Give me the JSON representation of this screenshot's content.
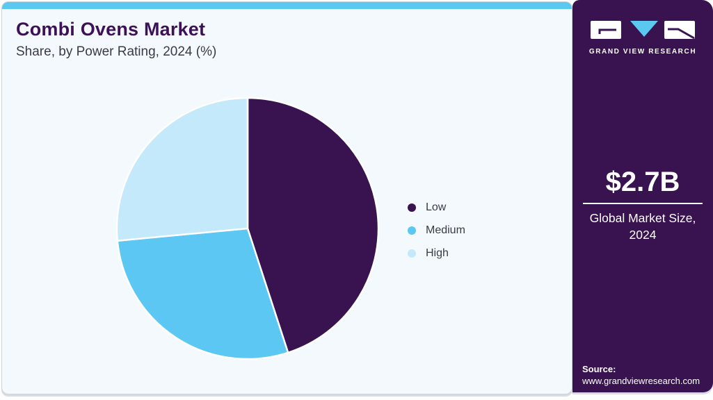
{
  "header": {
    "title": "Combi Ovens Market",
    "subtitle": "Share, by Power Rating, 2024 (%)"
  },
  "chart_data": {
    "type": "pie",
    "title": "Combi Ovens Market Share, by Power Rating, 2024 (%)",
    "categories": [
      "Low",
      "Medium",
      "High"
    ],
    "values": [
      45.0,
      28.5,
      26.5
    ],
    "unit": "%",
    "colors": [
      "#38134f",
      "#5bc7f2",
      "#c3e9fb"
    ],
    "start_angle_deg": 0,
    "direction": "clockwise",
    "legend_position": "right",
    "slice_border_color": "#ffffff"
  },
  "sidebar": {
    "logo": {
      "brand": "GRAND VIEW RESEARCH",
      "accent_color": "#5bc8f0",
      "block_color": "#ffffff"
    },
    "market_size_value": "$2.7B",
    "market_size_label_line1": "Global Market Size,",
    "market_size_label_line2": "2024",
    "source_label": "Source:",
    "source_url": "www.grandviewresearch.com"
  },
  "theme": {
    "card_background": "#f3f9fc",
    "top_bar_color": "#5bc8f0",
    "sidebar_color": "#38134f",
    "title_color": "#3c1157",
    "text_color": "#3b3b45",
    "border_color": "#ccd3d9"
  }
}
